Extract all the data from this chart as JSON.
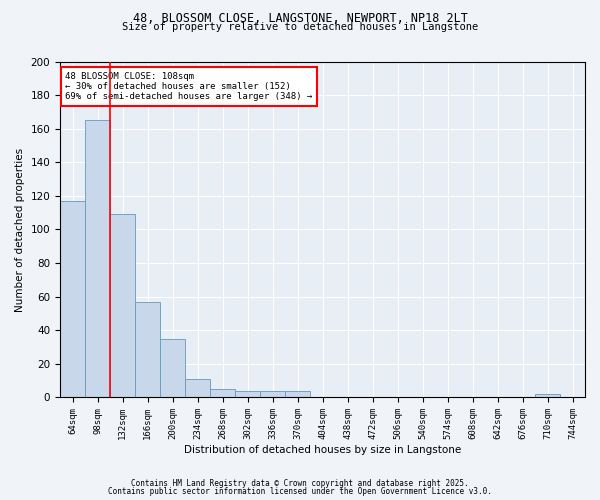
{
  "title_line1": "48, BLOSSOM CLOSE, LANGSTONE, NEWPORT, NP18 2LT",
  "title_line2": "Size of property relative to detached houses in Langstone",
  "xlabel": "Distribution of detached houses by size in Langstone",
  "ylabel": "Number of detached properties",
  "bin_labels": [
    "64sqm",
    "98sqm",
    "132sqm",
    "166sqm",
    "200sqm",
    "234sqm",
    "268sqm",
    "302sqm",
    "336sqm",
    "370sqm",
    "404sqm",
    "438sqm",
    "472sqm",
    "506sqm",
    "540sqm",
    "574sqm",
    "608sqm",
    "642sqm",
    "676sqm",
    "710sqm",
    "744sqm"
  ],
  "bar_values": [
    117,
    165,
    109,
    57,
    35,
    11,
    5,
    4,
    4,
    4,
    0,
    0,
    0,
    0,
    0,
    0,
    0,
    0,
    0,
    2,
    0
  ],
  "bar_color": "#c8d8ea",
  "bar_edge_color": "#6699bb",
  "vline_x": 1.5,
  "vline_color": "red",
  "annotation_text": "48 BLOSSOM CLOSE: 108sqm\n← 30% of detached houses are smaller (152)\n69% of semi-detached houses are larger (348) →",
  "annotation_box_color": "white",
  "annotation_box_edge_color": "red",
  "ylim": [
    0,
    200
  ],
  "yticks": [
    0,
    20,
    40,
    60,
    80,
    100,
    120,
    140,
    160,
    180,
    200
  ],
  "footer_line1": "Contains HM Land Registry data © Crown copyright and database right 2025.",
  "footer_line2": "Contains public sector information licensed under the Open Government Licence v3.0.",
  "bg_color": "#f0f4f8",
  "plot_bg_color": "#e8eef6",
  "grid_color": "#ffffff"
}
